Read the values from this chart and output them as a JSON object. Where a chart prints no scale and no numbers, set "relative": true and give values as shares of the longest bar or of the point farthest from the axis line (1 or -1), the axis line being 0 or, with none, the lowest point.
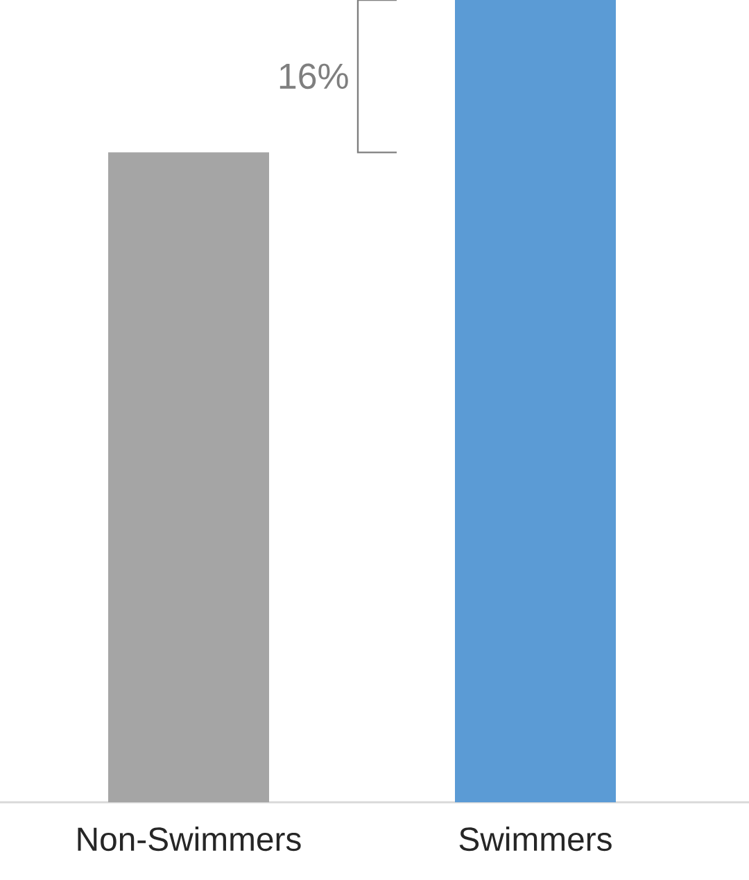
{
  "chart_data": {
    "type": "bar",
    "categories": [
      "Non-Swimmers",
      "Swimmers"
    ],
    "values": [
      0.81,
      1
    ],
    "colors": [
      "#a5a5a5",
      "#5b9bd5"
    ],
    "relative": true,
    "annotations": [
      "16%"
    ]
  }
}
